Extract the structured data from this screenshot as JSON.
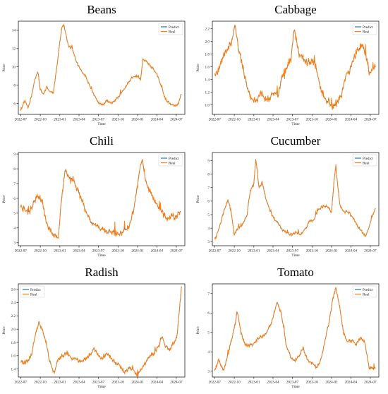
{
  "colors": {
    "predict": "#1f77b4",
    "real": "#ff7f0e"
  },
  "chart_data": [
    {
      "type": "line",
      "title": "Beans",
      "xlabel": "Time",
      "ylabel": "Price",
      "x_ticks": [
        "2022-07",
        "2022-10",
        "2023-01",
        "2023-04",
        "2023-07",
        "2023-10",
        "2024-01",
        "2024-04",
        "2024-07"
      ],
      "y_ticks": [
        6,
        8,
        10,
        12,
        14
      ],
      "xlim": [
        "2022-06-20",
        "2024-08-10"
      ],
      "ylim": [
        4.8,
        15.0
      ],
      "legend": "top-right",
      "noise": 0.15,
      "series": [
        {
          "name": "Predict",
          "color": "#1f77b4"
        },
        {
          "name": "Real",
          "color": "#ff7f0e"
        }
      ],
      "x": [
        "2022-07-01",
        "2022-07-20",
        "2022-08-05",
        "2022-08-25",
        "2022-09-05",
        "2022-09-20",
        "2022-10-01",
        "2022-10-15",
        "2022-11-01",
        "2022-11-15",
        "2022-12-01",
        "2022-12-15",
        "2022-12-28",
        "2023-01-10",
        "2023-01-20",
        "2023-02-10",
        "2023-03-01",
        "2023-03-20",
        "2023-04-10",
        "2023-05-01",
        "2023-05-20",
        "2023-06-10",
        "2023-07-01",
        "2023-07-20",
        "2023-08-10",
        "2023-09-01",
        "2023-09-20",
        "2023-10-10",
        "2023-11-01",
        "2023-11-20",
        "2023-12-10",
        "2024-01-01",
        "2024-01-15",
        "2024-01-25",
        "2024-02-10",
        "2024-02-25",
        "2024-03-15",
        "2024-04-01",
        "2024-04-20",
        "2024-05-10",
        "2024-06-01",
        "2024-06-20",
        "2024-07-10",
        "2024-07-25"
      ],
      "values": [
        5.3,
        6.3,
        5.5,
        7.2,
        8.6,
        9.5,
        7.5,
        7.0,
        7.8,
        7.3,
        7.1,
        9.5,
        12.0,
        14.3,
        14.6,
        12.3,
        12.0,
        10.5,
        9.6,
        9.0,
        8.0,
        7.0,
        6.1,
        5.8,
        6.3,
        6.0,
        6.4,
        6.9,
        7.6,
        8.4,
        8.9,
        9.0,
        8.6,
        10.8,
        10.6,
        10.2,
        9.8,
        9.2,
        8.0,
        6.5,
        6.0,
        5.8,
        5.9,
        7.1
      ]
    },
    {
      "type": "line",
      "title": "Cabbage",
      "xlabel": "Time",
      "ylabel": "Price",
      "x_ticks": [
        "2022-07",
        "2022-10",
        "2023-01",
        "2023-04",
        "2023-07",
        "2023-10",
        "2024-01",
        "2024-04",
        "2024-07"
      ],
      "y_ticks": [
        1.0,
        1.2,
        1.4,
        1.6,
        1.8,
        2.0,
        2.2
      ],
      "xlim": [
        "2022-06-20",
        "2024-08-10"
      ],
      "ylim": [
        0.85,
        2.32
      ],
      "legend": "top-right",
      "noise": 0.06,
      "series": [
        {
          "name": "Predict",
          "color": "#1f77b4"
        },
        {
          "name": "Real",
          "color": "#ff7f0e"
        }
      ],
      "x": [
        "2022-07-01",
        "2022-07-20",
        "2022-08-10",
        "2022-09-01",
        "2022-09-20",
        "2022-10-05",
        "2022-10-20",
        "2022-11-10",
        "2022-12-01",
        "2022-12-20",
        "2023-01-10",
        "2023-02-01",
        "2023-02-20",
        "2023-03-15",
        "2023-04-05",
        "2023-04-25",
        "2023-05-15",
        "2023-06-05",
        "2023-06-25",
        "2023-07-10",
        "2023-08-01",
        "2023-08-20",
        "2023-09-10",
        "2023-10-01",
        "2023-10-20",
        "2023-11-10",
        "2023-12-01",
        "2023-12-20",
        "2024-01-10",
        "2024-02-01",
        "2024-02-20",
        "2024-03-10",
        "2024-03-25",
        "2024-04-10",
        "2024-05-01",
        "2024-05-20",
        "2024-06-10",
        "2024-06-25",
        "2024-07-10",
        "2024-07-25"
      ],
      "values": [
        1.45,
        1.55,
        1.75,
        1.9,
        2.0,
        2.25,
        1.9,
        1.6,
        1.25,
        1.1,
        1.05,
        1.2,
        1.1,
        1.1,
        1.2,
        1.15,
        1.45,
        1.6,
        1.75,
        2.2,
        1.8,
        1.75,
        1.65,
        1.7,
        1.6,
        1.25,
        1.1,
        1.05,
        0.95,
        1.05,
        1.2,
        1.5,
        1.5,
        1.7,
        1.85,
        1.95,
        1.8,
        1.5,
        1.55,
        1.6
      ]
    },
    {
      "type": "line",
      "title": "Chili",
      "xlabel": "Time",
      "ylabel": "Price",
      "x_ticks": [
        "2022-07",
        "2022-10",
        "2023-01",
        "2023-04",
        "2023-07",
        "2023-10",
        "2024-01",
        "2024-04",
        "2024-07"
      ],
      "y_ticks": [
        3,
        4,
        5,
        6,
        7,
        8,
        9
      ],
      "xlim": [
        "2022-06-20",
        "2024-08-10"
      ],
      "ylim": [
        2.8,
        9.1
      ],
      "legend": "top-right",
      "noise": 0.22,
      "series": [
        {
          "name": "Predict",
          "color": "#1f77b4"
        },
        {
          "name": "Real",
          "color": "#ff7f0e"
        }
      ],
      "x": [
        "2022-07-01",
        "2022-07-20",
        "2022-08-10",
        "2022-09-01",
        "2022-09-20",
        "2022-10-10",
        "2022-10-30",
        "2022-11-20",
        "2022-12-10",
        "2022-12-25",
        "2023-01-10",
        "2023-01-25",
        "2023-02-15",
        "2023-03-05",
        "2023-03-25",
        "2023-04-15",
        "2023-05-05",
        "2023-05-25",
        "2023-06-15",
        "2023-07-05",
        "2023-07-25",
        "2023-08-15",
        "2023-09-05",
        "2023-09-25",
        "2023-10-15",
        "2023-11-05",
        "2023-11-25",
        "2023-12-15",
        "2024-01-01",
        "2024-01-15",
        "2024-01-25",
        "2024-02-10",
        "2024-03-01",
        "2024-03-20",
        "2024-04-10",
        "2024-05-01",
        "2024-05-20",
        "2024-06-10",
        "2024-07-01",
        "2024-07-20"
      ],
      "values": [
        5.5,
        5.2,
        5.0,
        5.7,
        6.2,
        5.8,
        4.3,
        3.8,
        3.5,
        3.3,
        6.2,
        7.8,
        7.5,
        7.3,
        6.5,
        5.8,
        5.0,
        4.5,
        4.2,
        4.0,
        3.9,
        3.8,
        3.7,
        3.6,
        3.6,
        3.8,
        4.2,
        5.3,
        6.8,
        8.3,
        8.6,
        7.0,
        6.4,
        5.8,
        5.4,
        5.0,
        4.6,
        4.8,
        4.7,
        5.2
      ]
    },
    {
      "type": "line",
      "title": "Cucumber",
      "xlabel": "Time",
      "ylabel": "Price",
      "x_ticks": [
        "2022-07",
        "2022-10",
        "2023-01",
        "2023-04",
        "2023-07",
        "2023-10",
        "2024-01",
        "2024-04",
        "2024-07"
      ],
      "y_ticks": [
        3,
        4,
        5,
        6,
        7,
        8,
        9
      ],
      "xlim": [
        "2022-06-20",
        "2024-08-10"
      ],
      "ylim": [
        2.7,
        9.6
      ],
      "legend": "top-right",
      "noise": 0.12,
      "series": [
        {
          "name": "Predict",
          "color": "#1f77b4"
        },
        {
          "name": "Real",
          "color": "#ff7f0e"
        }
      ],
      "x": [
        "2022-07-01",
        "2022-07-20",
        "2022-08-10",
        "2022-09-01",
        "2022-09-15",
        "2022-10-01",
        "2022-10-20",
        "2022-11-10",
        "2022-11-30",
        "2022-12-15",
        "2023-01-01",
        "2023-01-10",
        "2023-01-25",
        "2023-02-10",
        "2023-03-01",
        "2023-03-20",
        "2023-04-10",
        "2023-05-01",
        "2023-05-20",
        "2023-06-10",
        "2023-07-01",
        "2023-07-20",
        "2023-08-10",
        "2023-09-01",
        "2023-09-20",
        "2023-10-10",
        "2023-11-01",
        "2023-11-20",
        "2023-12-10",
        "2024-01-01",
        "2024-01-10",
        "2024-01-20",
        "2024-02-10",
        "2024-03-01",
        "2024-03-20",
        "2024-04-10",
        "2024-05-01",
        "2024-05-20",
        "2024-06-10",
        "2024-07-01",
        "2024-07-25"
      ],
      "values": [
        3.2,
        3.9,
        5.1,
        6.1,
        5.3,
        3.5,
        4.0,
        4.3,
        5.0,
        6.8,
        7.2,
        9.2,
        7.0,
        7.4,
        6.0,
        5.2,
        4.6,
        4.2,
        3.8,
        3.6,
        3.5,
        3.7,
        3.5,
        4.0,
        4.5,
        4.6,
        5.4,
        5.6,
        5.6,
        5.2,
        7.0,
        8.6,
        5.6,
        5.2,
        5.2,
        4.8,
        4.2,
        3.8,
        3.4,
        4.4,
        5.5
      ]
    },
    {
      "type": "line",
      "title": "Radish",
      "xlabel": "Time",
      "ylabel": "Price",
      "x_ticks": [
        "2022-07",
        "2022-10",
        "2023-01",
        "2023-04",
        "2023-07",
        "2023-10",
        "2024-01",
        "2024-04",
        "2024-07"
      ],
      "y_ticks": [
        1.4,
        1.6,
        1.8,
        2.0,
        2.2,
        2.4,
        2.6
      ],
      "xlim": [
        "2022-06-20",
        "2024-08-10"
      ],
      "ylim": [
        1.28,
        2.68
      ],
      "legend": "top-left",
      "noise": 0.035,
      "series": [
        {
          "name": "Predict",
          "color": "#1f77b4"
        },
        {
          "name": "Real",
          "color": "#ff7f0e"
        }
      ],
      "x": [
        "2022-07-01",
        "2022-07-25",
        "2022-08-20",
        "2022-09-10",
        "2022-09-25",
        "2022-10-10",
        "2022-10-25",
        "2022-11-15",
        "2022-12-05",
        "2022-12-25",
        "2023-01-15",
        "2023-02-05",
        "2023-02-25",
        "2023-03-20",
        "2023-04-10",
        "2023-05-01",
        "2023-05-20",
        "2023-06-10",
        "2023-07-01",
        "2023-07-20",
        "2023-08-10",
        "2023-09-01",
        "2023-09-20",
        "2023-10-10",
        "2023-11-01",
        "2023-11-20",
        "2023-12-10",
        "2024-01-01",
        "2024-01-20",
        "2024-02-10",
        "2024-03-01",
        "2024-03-20",
        "2024-04-10",
        "2024-04-25",
        "2024-05-10",
        "2024-06-01",
        "2024-06-20",
        "2024-07-05",
        "2024-07-25"
      ],
      "values": [
        1.5,
        1.5,
        1.6,
        1.95,
        2.1,
        2.0,
        1.85,
        1.5,
        1.35,
        1.55,
        1.6,
        1.65,
        1.55,
        1.55,
        1.5,
        1.55,
        1.6,
        1.7,
        1.6,
        1.55,
        1.65,
        1.55,
        1.5,
        1.45,
        1.35,
        1.4,
        1.4,
        1.3,
        1.4,
        1.5,
        1.6,
        1.65,
        1.75,
        1.9,
        1.75,
        1.7,
        1.8,
        1.9,
        2.65
      ]
    },
    {
      "type": "line",
      "title": "Tomato",
      "xlabel": "Time",
      "ylabel": "Price",
      "x_ticks": [
        "2022-07",
        "2022-10",
        "2023-01",
        "2023-04",
        "2023-07",
        "2023-10",
        "2024-01",
        "2024-04",
        "2024-07"
      ],
      "y_ticks": [
        3,
        4,
        5,
        6,
        7
      ],
      "xlim": [
        "2022-06-20",
        "2024-08-10"
      ],
      "ylim": [
        2.7,
        7.5
      ],
      "legend": "top-right",
      "noise": 0.1,
      "series": [
        {
          "name": "Predict",
          "color": "#1f77b4"
        },
        {
          "name": "Real",
          "color": "#ff7f0e"
        }
      ],
      "x": [
        "2022-07-01",
        "2022-07-20",
        "2022-08-10",
        "2022-08-25",
        "2022-09-15",
        "2022-10-01",
        "2022-10-15",
        "2022-11-01",
        "2022-11-20",
        "2022-12-10",
        "2023-01-01",
        "2023-01-20",
        "2023-02-10",
        "2023-03-01",
        "2023-03-20",
        "2023-04-05",
        "2023-04-20",
        "2023-05-10",
        "2023-06-01",
        "2023-06-20",
        "2023-07-10",
        "2023-08-01",
        "2023-08-20",
        "2023-09-10",
        "2023-10-01",
        "2023-10-20",
        "2023-11-10",
        "2023-12-01",
        "2023-12-20",
        "2024-01-05",
        "2024-01-20",
        "2024-02-05",
        "2024-02-25",
        "2024-03-15",
        "2024-04-05",
        "2024-04-25",
        "2024-05-15",
        "2024-06-05",
        "2024-06-25",
        "2024-07-10",
        "2024-07-25"
      ],
      "values": [
        3.0,
        3.6,
        3.0,
        3.5,
        4.5,
        5.2,
        6.1,
        5.0,
        4.4,
        4.3,
        4.4,
        4.7,
        4.8,
        5.0,
        5.4,
        5.9,
        6.6,
        6.0,
        4.4,
        3.8,
        3.5,
        3.8,
        4.2,
        3.6,
        3.4,
        3.2,
        3.5,
        4.6,
        5.5,
        6.6,
        7.3,
        6.5,
        5.0,
        4.5,
        4.6,
        4.4,
        4.7,
        4.5,
        3.2,
        3.1,
        3.2
      ]
    }
  ]
}
